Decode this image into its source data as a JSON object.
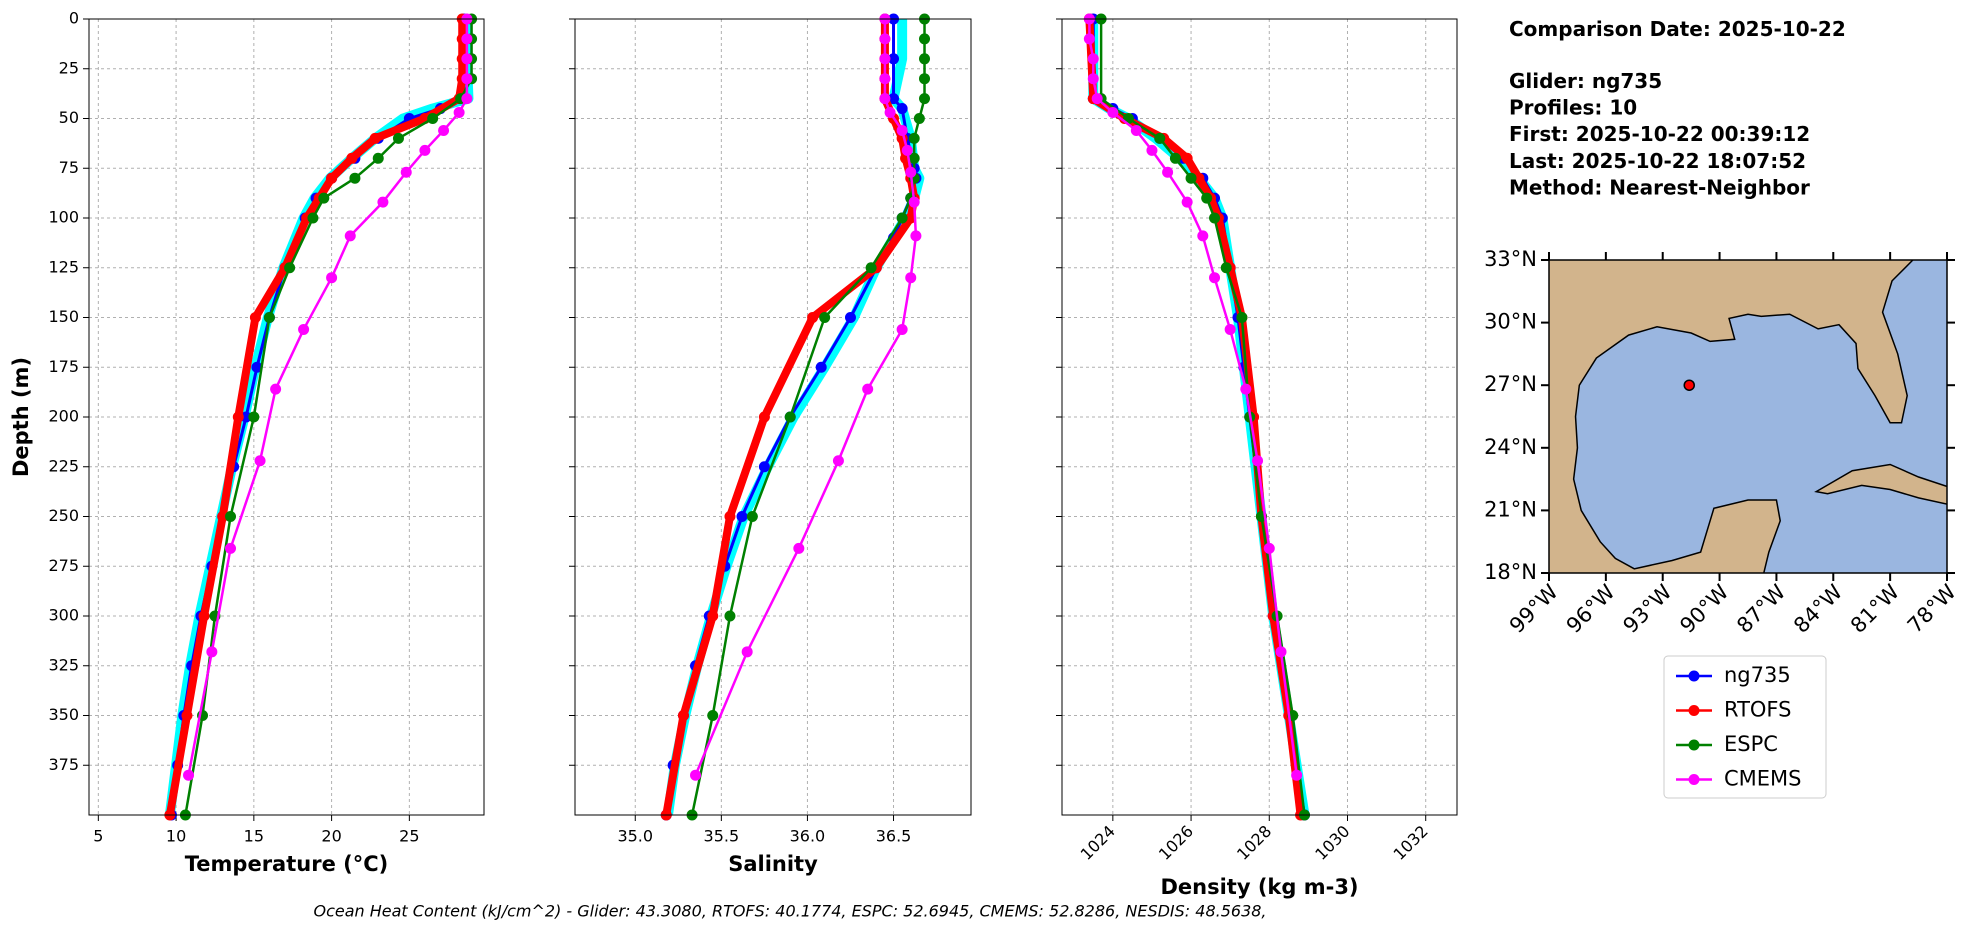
{
  "info": {
    "title": "Comparison Date: 2025-10-22",
    "lines": [
      "Glider: ng735",
      "Profiles: 10",
      "First: 2025-10-22 00:39:12",
      "Last: 2025-10-22 18:07:52",
      "Method: Nearest-Neighbor"
    ]
  },
  "legend": [
    {
      "name": "ng735",
      "color": "#0000ff"
    },
    {
      "name": "RTOFS",
      "color": "#ff0000"
    },
    {
      "name": "ESPC",
      "color": "#008000"
    },
    {
      "name": "CMEMS",
      "color": "#ff00ff"
    }
  ],
  "footer": "Ocean Heat Content (kJ/cm^2) - Glider: 43.3080,  RTOFS: 40.1774,  ESPC: 52.6945,  CMEMS: 52.8286,  NESDIS: 48.5638,",
  "chart_data": [
    {
      "type": "line",
      "xlabel": "Temperature (°C)",
      "ylabel": "Depth (m)",
      "xlim": [
        4.4,
        29.8
      ],
      "xticks": [
        5,
        10,
        15,
        20,
        25
      ],
      "ylim": [
        0,
        400
      ],
      "yticks": [
        0,
        25,
        50,
        75,
        100,
        125,
        150,
        175,
        200,
        225,
        250,
        275,
        300,
        325,
        350,
        375
      ],
      "y_inverted": true,
      "grid": true,
      "series": [
        {
          "color": "#00ffff",
          "width": 10,
          "markers": false,
          "x": [
            28.7,
            28.7,
            28.8,
            26.5,
            24.6,
            22.8,
            21.3,
            19.9,
            18.9,
            18.2,
            16.9,
            15.9,
            15.1,
            14.4,
            13.6,
            12.9,
            12.2,
            11.5,
            10.9,
            10.4,
            10.0,
            9.6
          ],
          "y": [
            0,
            20,
            40,
            45,
            50,
            60,
            70,
            80,
            90,
            100,
            125,
            150,
            175,
            200,
            225,
            250,
            275,
            300,
            325,
            350,
            375,
            400
          ]
        },
        {
          "color": "#0000ff",
          "width": 3,
          "markers": true,
          "x": [
            28.5,
            28.5,
            28.5,
            27,
            25,
            23,
            21.5,
            20,
            19,
            18.3,
            17,
            16,
            15.2,
            14.5,
            13.7,
            13,
            12.3,
            11.6,
            11,
            10.5,
            10.1,
            9.7
          ],
          "y": [
            0,
            20,
            40,
            45,
            50,
            60,
            70,
            80,
            90,
            100,
            125,
            150,
            175,
            200,
            225,
            250,
            275,
            300,
            325,
            350,
            375,
            400
          ]
        },
        {
          "color": "#ff0000",
          "width": 8,
          "markers": true,
          "x": [
            28.4,
            28.4,
            28.4,
            28.4,
            28.2,
            26,
            22.8,
            21.3,
            20,
            19.2,
            18.4,
            17,
            15.1,
            14,
            13,
            11.8,
            10.7,
            9.6
          ],
          "y": [
            0,
            10,
            20,
            30,
            40,
            50,
            60,
            70,
            80,
            90,
            100,
            125,
            150,
            200,
            250,
            300,
            350,
            400
          ]
        },
        {
          "color": "#008000",
          "width": 2.5,
          "markers": true,
          "x": [
            29,
            29,
            29,
            29,
            28.3,
            26.5,
            24.3,
            23,
            21.5,
            19.5,
            18.8,
            17.3,
            16,
            15,
            13.5,
            12.5,
            11.7,
            10.6
          ],
          "y": [
            0,
            10,
            20,
            30,
            40,
            50,
            60,
            70,
            80,
            90,
            100,
            125,
            150,
            200,
            250,
            300,
            350,
            400
          ]
        },
        {
          "color": "#ff00ff",
          "width": 2.5,
          "markers": true,
          "x": [
            28.7,
            28.7,
            28.7,
            28.7,
            28.7,
            28.2,
            27.2,
            26,
            24.8,
            23.3,
            21.2,
            20,
            18.2,
            16.4,
            15.4,
            13.5,
            12.3,
            10.8
          ],
          "y": [
            0,
            10,
            20,
            30,
            40,
            47,
            56,
            66,
            77,
            92,
            109,
            130,
            156,
            186,
            222,
            266,
            318,
            380
          ]
        }
      ]
    },
    {
      "type": "line",
      "xlabel": "Salinity",
      "xlim": [
        34.65,
        36.95
      ],
      "xticks": [
        {
          "value": 35,
          "label": "35.0"
        },
        35.5,
        {
          "value": 36,
          "label": "36.0"
        },
        36.5
      ],
      "ylim": [
        0,
        400
      ],
      "sharey": true,
      "y_inverted": true,
      "grid": true,
      "series": [
        {
          "color": "#00ffff",
          "width": 10,
          "markers": false,
          "x": [
            36.55,
            36.55,
            36.5,
            36.55,
            36.6,
            36.62,
            36.65,
            36.62,
            36.57,
            36.5,
            36.4,
            36.27,
            36.1,
            35.92,
            35.77,
            35.63,
            35.53,
            35.44,
            35.36,
            35.29,
            35.23,
            35.19
          ],
          "y": [
            0,
            20,
            40,
            45,
            60,
            75,
            80,
            90,
            100,
            110,
            125,
            150,
            175,
            200,
            225,
            250,
            275,
            300,
            325,
            350,
            375,
            400
          ]
        },
        {
          "color": "#0000ff",
          "width": 3,
          "markers": true,
          "x": [
            36.5,
            36.5,
            36.5,
            36.55,
            36.58,
            36.62,
            36.63,
            36.6,
            36.55,
            36.5,
            36.4,
            36.25,
            36.08,
            35.9,
            35.75,
            35.62,
            35.52,
            35.43,
            35.35,
            35.28,
            35.22,
            35.18
          ],
          "y": [
            0,
            20,
            40,
            45,
            60,
            75,
            80,
            90,
            100,
            110,
            125,
            150,
            175,
            200,
            225,
            250,
            275,
            300,
            325,
            350,
            375,
            400
          ]
        },
        {
          "color": "#ff0000",
          "width": 8,
          "markers": true,
          "x": [
            36.45,
            36.45,
            36.45,
            36.45,
            36.45,
            36.5,
            36.55,
            36.57,
            36.6,
            36.62,
            36.6,
            36.4,
            36.03,
            35.75,
            35.55,
            35.45,
            35.28,
            35.18
          ],
          "y": [
            0,
            10,
            20,
            30,
            40,
            50,
            60,
            70,
            80,
            90,
            100,
            125,
            150,
            200,
            250,
            300,
            350,
            400
          ]
        },
        {
          "color": "#008000",
          "width": 2.5,
          "markers": true,
          "x": [
            36.68,
            36.68,
            36.68,
            36.68,
            36.68,
            36.65,
            36.62,
            36.62,
            36.62,
            36.6,
            36.55,
            36.37,
            36.1,
            35.9,
            35.68,
            35.55,
            35.45,
            35.33
          ],
          "y": [
            0,
            10,
            20,
            30,
            40,
            50,
            60,
            70,
            80,
            90,
            100,
            125,
            150,
            200,
            250,
            300,
            350,
            400
          ]
        },
        {
          "color": "#ff00ff",
          "width": 2.5,
          "markers": true,
          "x": [
            36.45,
            36.45,
            36.45,
            36.45,
            36.45,
            36.48,
            36.55,
            36.58,
            36.6,
            36.62,
            36.63,
            36.6,
            36.55,
            36.35,
            36.18,
            35.95,
            35.65,
            35.35
          ],
          "y": [
            0,
            10,
            20,
            30,
            40,
            47,
            56,
            66,
            77,
            92,
            109,
            130,
            156,
            186,
            222,
            266,
            318,
            380
          ]
        }
      ]
    },
    {
      "type": "line",
      "xlabel": "Density (kg m-3)",
      "xlim": [
        1022.7,
        1032.8
      ],
      "xticks": [
        1024,
        1026,
        1028,
        1030,
        1032
      ],
      "xtick_rotation": 45,
      "ylim": [
        0,
        400
      ],
      "sharey": true,
      "y_inverted": true,
      "grid": true,
      "series": [
        {
          "color": "#00ffff",
          "width": 10,
          "markers": false,
          "x": [
            1023.5,
            1023.5,
            1023.9,
            1024.4,
            1025.1,
            1025.7,
            1026.2,
            1026.6,
            1026.8,
            1027.0,
            1027.2,
            1027.35,
            1027.5,
            1027.8,
            1028.1,
            1028.5,
            1028.9
          ],
          "y": [
            0,
            40,
            45,
            50,
            60,
            70,
            80,
            90,
            100,
            125,
            150,
            175,
            200,
            250,
            300,
            350,
            400
          ]
        },
        {
          "color": "#0000ff",
          "width": 3,
          "markers": true,
          "x": [
            1023.5,
            1023.5,
            1024,
            1024.5,
            1025.2,
            1025.8,
            1026.3,
            1026.6,
            1026.8,
            1027.0,
            1027.2,
            1027.35,
            1027.5,
            1027.8,
            1028.1,
            1028.5,
            1028.9
          ],
          "y": [
            0,
            40,
            45,
            50,
            60,
            70,
            80,
            90,
            100,
            125,
            150,
            175,
            200,
            250,
            300,
            350,
            400
          ]
        },
        {
          "color": "#ff0000",
          "width": 8,
          "markers": true,
          "x": [
            1023.4,
            1023.5,
            1024.3,
            1025.3,
            1025.9,
            1026.2,
            1026.5,
            1026.7,
            1027.0,
            1027.3,
            1027.6,
            1027.8,
            1028.1,
            1028.5,
            1028.8
          ],
          "y": [
            0,
            40,
            50,
            60,
            70,
            80,
            90,
            100,
            125,
            150,
            200,
            250,
            300,
            350,
            400
          ]
        },
        {
          "color": "#008000",
          "width": 2.5,
          "markers": true,
          "x": [
            1023.7,
            1023.7,
            1024.4,
            1025.2,
            1025.6,
            1026.0,
            1026.4,
            1026.6,
            1026.9,
            1027.3,
            1027.5,
            1027.8,
            1028.2,
            1028.6,
            1028.9
          ],
          "y": [
            0,
            40,
            50,
            60,
            70,
            80,
            90,
            100,
            125,
            150,
            200,
            250,
            300,
            350,
            400
          ]
        },
        {
          "color": "#ff00ff",
          "width": 2.5,
          "markers": true,
          "x": [
            1023.4,
            1023.4,
            1023.5,
            1023.5,
            1023.6,
            1024.0,
            1024.6,
            1025.0,
            1025.4,
            1025.9,
            1026.3,
            1026.6,
            1027.0,
            1027.4,
            1027.7,
            1028.0,
            1028.3,
            1028.7
          ],
          "y": [
            0,
            10,
            20,
            30,
            40,
            47,
            56,
            66,
            77,
            92,
            109,
            130,
            156,
            186,
            222,
            266,
            318,
            380
          ]
        }
      ]
    },
    {
      "type": "map",
      "xlim": [
        -99,
        -78
      ],
      "ylim": [
        18,
        33
      ],
      "xticks": [
        {
          "value": -99,
          "label": "99°W"
        },
        {
          "value": -96,
          "label": "96°W"
        },
        {
          "value": -93,
          "label": "93°W"
        },
        {
          "value": -90,
          "label": "90°W"
        },
        {
          "value": -87,
          "label": "87°W"
        },
        {
          "value": -84,
          "label": "84°W"
        },
        {
          "value": -81,
          "label": "81°W"
        },
        {
          "value": -78,
          "label": "78°W"
        }
      ],
      "yticks": [
        {
          "value": 18,
          "label": "18°N"
        },
        {
          "value": 21,
          "label": "21°N"
        },
        {
          "value": 24,
          "label": "24°N"
        },
        {
          "value": 27,
          "label": "27°N"
        },
        {
          "value": 30,
          "label": "30°N"
        },
        {
          "value": 33,
          "label": "33°N"
        }
      ],
      "glider_position": {
        "lon": -91.6,
        "lat": 27.0
      }
    }
  ]
}
